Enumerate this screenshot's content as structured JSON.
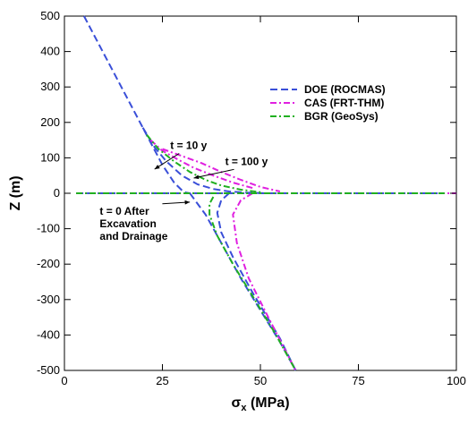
{
  "chart_data": {
    "type": "line",
    "xlabel_main": "σ",
    "xlabel_sub": "x",
    "xlabel_unit": " (MPa)",
    "ylabel": "Z (m)",
    "xlim": [
      0,
      100
    ],
    "ylim": [
      -500,
      500
    ],
    "xticks": [
      0,
      25,
      50,
      75,
      100
    ],
    "yticks": [
      -500,
      -400,
      -300,
      -200,
      -100,
      0,
      100,
      200,
      300,
      400,
      500
    ],
    "grid": false,
    "legend_position": "upper-right",
    "series": [
      {
        "name": "DOE (ROCMAS)",
        "color": "#3a4fd8",
        "dash": "dash",
        "curves": [
          {
            "label": "t0",
            "x": [
              5,
              10,
              15,
              20,
              25,
              28,
              30,
              31,
              32
            ],
            "y": [
              500,
              395,
              290,
              185,
              80,
              30,
              8,
              2,
              0
            ]
          },
          {
            "label": "t0-lower",
            "x": [
              32,
              34,
              36,
              40,
              45,
              50,
              55,
              59
            ],
            "y": [
              0,
              -30,
              -60,
              -140,
              -240,
              -330,
              -420,
              -500
            ]
          },
          {
            "label": "t10",
            "x": [
              20,
              23,
              26,
              30,
              34,
              38,
              42,
              46,
              52
            ],
            "y": [
              185,
              130,
              90,
              50,
              25,
              12,
              5,
              2,
              0
            ]
          },
          {
            "label": "t10-lower",
            "x": [
              42,
              40,
              39,
              40,
              43,
              48,
              55,
              59
            ],
            "y": [
              0,
              -20,
              -55,
              -110,
              -180,
              -280,
              -410,
              -500
            ]
          },
          {
            "label": "baseline",
            "x": [
              3,
              10,
              20,
              30,
              40,
              50,
              60,
              70,
              80,
              90,
              97
            ],
            "y": [
              0,
              0,
              0,
              0,
              0,
              0,
              0,
              0,
              0,
              0,
              0
            ]
          }
        ]
      },
      {
        "name": "CAS (FRT-THM)",
        "color": "#e020e0",
        "dash": "dashdot",
        "curves": [
          {
            "label": "t10",
            "x": [
              22,
              25,
              29,
              33,
              38,
              43,
              48
            ],
            "y": [
              150,
              120,
              95,
              72,
              50,
              30,
              15
            ]
          },
          {
            "label": "t100",
            "x": [
              25,
              30,
              35,
              40,
              45,
              50,
              55
            ],
            "y": [
              125,
              105,
              85,
              60,
              38,
              18,
              5
            ]
          },
          {
            "label": "t100-lower",
            "x": [
              48,
              45,
              43,
              44,
              47,
              52,
              59
            ],
            "y": [
              0,
              -20,
              -60,
              -140,
              -240,
              -350,
              -500
            ]
          },
          {
            "label": "baseline",
            "x": [
              3,
              10,
              20,
              30,
              40,
              50,
              60,
              70,
              80,
              90,
              100
            ],
            "y": [
              0,
              0,
              0,
              0,
              0,
              0,
              0,
              0,
              0,
              0,
              0
            ]
          }
        ]
      },
      {
        "name": "BGR (GeoSys)",
        "color": "#20b020",
        "dash": "dashdot",
        "curves": [
          {
            "label": "t10",
            "x": [
              21,
              24,
              28,
              32,
              36,
              40,
              45,
              50
            ],
            "y": [
              165,
              125,
              90,
              60,
              38,
              22,
              10,
              3
            ]
          },
          {
            "label": "t10-lower",
            "x": [
              38,
              37,
              37,
              39,
              43,
              48,
              54,
              59
            ],
            "y": [
              -10,
              -30,
              -60,
              -120,
              -200,
              -290,
              -400,
              -500
            ]
          },
          {
            "label": "baseline",
            "x": [
              3,
              10,
              20,
              30,
              40,
              50,
              60,
              70,
              80,
              90,
              97
            ],
            "y": [
              0,
              0,
              0,
              0,
              0,
              0,
              0,
              0,
              0,
              0,
              0
            ]
          }
        ]
      }
    ],
    "annotations": [
      {
        "lines": [
          "t = 10 y"
        ],
        "x": 27,
        "y": 125,
        "arrow_to": [
          23,
          68
        ]
      },
      {
        "lines": [
          "t = 100 y"
        ],
        "x": 41,
        "y": 80,
        "arrow_to": [
          33,
          43
        ]
      },
      {
        "lines": [
          "t = 0 After",
          "Excavation",
          "and Drainage"
        ],
        "x": 9,
        "y": -60,
        "arrow_to": [
          32,
          -25
        ]
      }
    ]
  }
}
